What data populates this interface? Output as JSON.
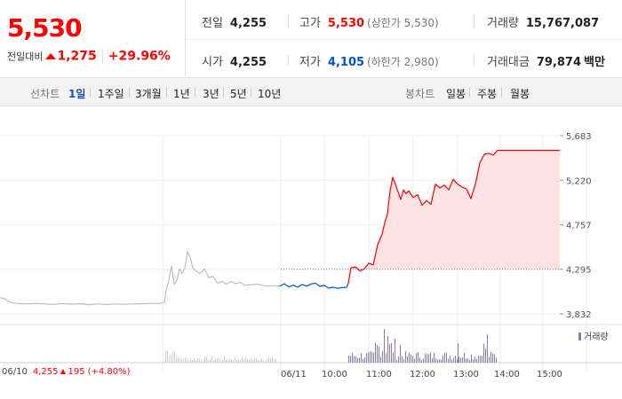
{
  "quote": {
    "price": "5,530",
    "change_label": "전일대비",
    "change_amount": "1,275",
    "change_rate": "+29.96%",
    "stats": {
      "prev_close_label": "전일",
      "prev_close": "4,255",
      "open_label": "시가",
      "open": "4,255",
      "high_label": "고가",
      "high": "5,530",
      "upper_limit": "(상한가 5,530)",
      "low_label": "저가",
      "low": "4,105",
      "lower_limit": "(하한가 2,980)",
      "volume_label": "거래량",
      "volume": "15,767,087",
      "value_label": "거래대금",
      "value": "79,874",
      "value_unit": "백만"
    }
  },
  "tabs": {
    "line_label": "선차트",
    "line": [
      "1일",
      "1주일",
      "3개월",
      "1년",
      "3년",
      "5년",
      "10년"
    ],
    "active": "1일",
    "candle_label": "봉차트",
    "candle": [
      "일봉",
      "주봉",
      "월봉"
    ]
  },
  "prev_day": {
    "date": "06/10",
    "close": "4,255",
    "change": "195",
    "rate": "(+4.80%)"
  },
  "colors": {
    "up": "#ff0000",
    "down": "#0055cc",
    "prev_line": "#bdbdbd",
    "area_fill": "#fde3e3",
    "volume": "#8c7ab3"
  },
  "chart_data": {
    "type": "line",
    "y_ticks": [
      "5,683",
      "5,220",
      "4,757",
      "4,295",
      "3,832"
    ],
    "ylim": [
      3832,
      5683
    ],
    "reference_price": 4255,
    "x_tick_labels": [
      "06/10",
      "06/11",
      "10:00",
      "11:00",
      "12:00",
      "13:00",
      "14:00",
      "15:00"
    ],
    "volume_legend": "거래량",
    "series": [
      {
        "segment": "previous_day",
        "x": [
          0,
          5,
          10,
          15,
          20,
          30,
          40,
          50,
          60,
          70,
          80,
          90,
          100,
          110,
          120,
          130,
          140,
          150,
          160,
          170,
          180,
          185,
          187,
          190,
          193,
          196,
          199,
          202,
          205,
          208,
          211,
          214,
          217,
          220,
          225,
          230,
          235,
          240,
          245,
          250,
          255,
          260,
          265,
          270,
          275,
          280,
          290,
          300,
          310,
          315
        ],
        "values": [
          4000,
          3990,
          3960,
          3945,
          3940,
          3935,
          3940,
          3935,
          3930,
          3940,
          3932,
          3938,
          3928,
          3935,
          3930,
          3935,
          3932,
          3935,
          3938,
          3940,
          3942,
          3950,
          4080,
          4180,
          4330,
          4140,
          4180,
          4300,
          4250,
          4310,
          4480,
          4420,
          4310,
          4280,
          4250,
          4300,
          4210,
          4220,
          4150,
          4170,
          4140,
          4170,
          4145,
          4160,
          4130,
          4135,
          4140,
          4120,
          4125,
          4120
        ]
      },
      {
        "segment": "today_below_prev_close",
        "x": [
          315,
          320,
          325,
          330,
          335,
          340,
          345,
          350,
          355,
          360,
          365,
          370,
          375,
          380,
          385,
          390,
          392
        ],
        "values": [
          4120,
          4145,
          4112,
          4130,
          4108,
          4138,
          4120,
          4142,
          4152,
          4118,
          4128,
          4100,
          4108,
          4098,
          4105,
          4108,
          4150
        ]
      },
      {
        "segment": "today_above_prev_close",
        "x": [
          392,
          395,
          400,
          405,
          410,
          415,
          420,
          425,
          430,
          433,
          436,
          439,
          442,
          445,
          448,
          451,
          454,
          457,
          460,
          465,
          470,
          475,
          480,
          485,
          490,
          495,
          500,
          505,
          510,
          515,
          520,
          525,
          530,
          535,
          540,
          545,
          550,
          555,
          560,
          565,
          570,
          600,
          630
        ],
        "values": [
          4150,
          4310,
          4320,
          4280,
          4300,
          4360,
          4340,
          4550,
          4660,
          4780,
          4870,
          5110,
          5250,
          5180,
          5100,
          5020,
          5120,
          5080,
          5110,
          5040,
          5070,
          4960,
          5010,
          4970,
          5180,
          5140,
          5170,
          5120,
          5230,
          5180,
          5150,
          5130,
          5030,
          5180,
          5400,
          5490,
          5500,
          5480,
          5530,
          5530,
          5530,
          5530,
          5530
        ]
      }
    ]
  }
}
